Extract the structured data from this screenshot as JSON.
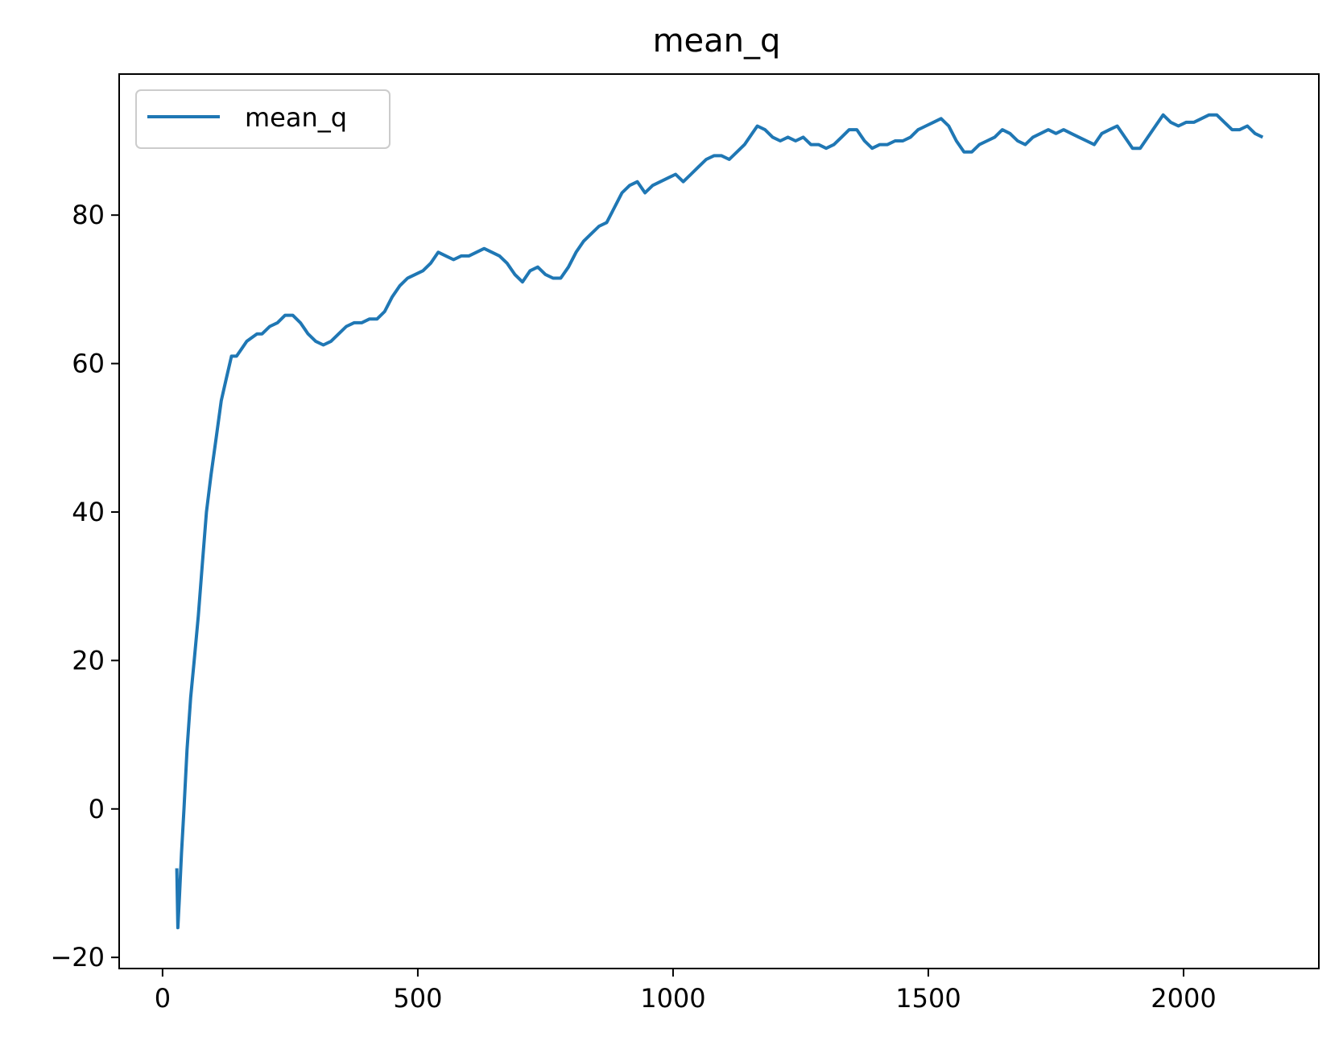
{
  "chart_data": {
    "type": "line",
    "title": "mean_q",
    "xlabel": "",
    "ylabel": "",
    "xlim": [
      -85,
      2265
    ],
    "ylim": [
      -21.5,
      99
    ],
    "xticks": [
      0,
      500,
      1000,
      1500,
      2000
    ],
    "yticks": [
      -20,
      0,
      20,
      40,
      60,
      80
    ],
    "xtick_labels": [
      "0",
      "500",
      "1000",
      "1500",
      "2000"
    ],
    "ytick_labels": [
      "−20",
      "0",
      "20",
      "40",
      "60",
      "80"
    ],
    "grid": false,
    "legend": {
      "position": "top-left",
      "entries": [
        "mean_q"
      ]
    },
    "series": [
      {
        "name": "mean_q",
        "color": "#1f77b4",
        "x": [
          28,
          30,
          33,
          37,
          42,
          48,
          55,
          62,
          70,
          78,
          86,
          95,
          105,
          115,
          125,
          135,
          145,
          155,
          165,
          175,
          185,
          195,
          210,
          225,
          240,
          255,
          270,
          285,
          300,
          315,
          330,
          345,
          360,
          375,
          390,
          405,
          420,
          435,
          450,
          465,
          480,
          495,
          510,
          525,
          540,
          555,
          570,
          585,
          600,
          615,
          630,
          645,
          660,
          675,
          690,
          705,
          720,
          735,
          750,
          765,
          780,
          795,
          810,
          825,
          840,
          855,
          870,
          885,
          900,
          915,
          930,
          945,
          960,
          975,
          990,
          1005,
          1020,
          1035,
          1050,
          1065,
          1080,
          1095,
          1110,
          1125,
          1140,
          1155,
          1165,
          1180,
          1195,
          1210,
          1225,
          1240,
          1255,
          1270,
          1285,
          1300,
          1315,
          1330,
          1345,
          1360,
          1375,
          1390,
          1405,
          1420,
          1435,
          1450,
          1465,
          1480,
          1495,
          1510,
          1525,
          1540,
          1555,
          1570,
          1585,
          1600,
          1615,
          1630,
          1645,
          1660,
          1675,
          1690,
          1705,
          1720,
          1735,
          1750,
          1765,
          1780,
          1795,
          1810,
          1825,
          1840,
          1855,
          1870,
          1885,
          1900,
          1915,
          1930,
          1945,
          1960,
          1975,
          1990,
          2005,
          2020,
          2035,
          2050,
          2065,
          2080,
          2095,
          2110,
          2125,
          2140,
          2155
        ],
        "y": [
          -8,
          -16,
          -12,
          -6,
          0,
          8,
          15,
          20,
          26,
          33,
          40,
          45,
          50,
          55,
          58,
          61,
          61,
          62,
          63,
          63.5,
          64,
          64,
          65,
          65.5,
          66.5,
          66.5,
          65.5,
          64,
          63,
          62.5,
          63,
          64,
          65,
          65.5,
          65.5,
          66,
          66,
          67,
          69,
          70.5,
          71.5,
          72,
          72.5,
          73.5,
          75,
          74.5,
          74,
          74.5,
          74.5,
          75,
          75.5,
          75,
          74.5,
          73.5,
          72,
          71,
          72.5,
          73,
          72,
          71.5,
          71.5,
          73,
          75,
          76.5,
          77.5,
          78.5,
          79,
          81,
          83,
          84,
          84.5,
          83,
          84,
          84.5,
          85,
          85.5,
          84.5,
          85.5,
          86.5,
          87.5,
          88,
          88,
          87.5,
          88.5,
          89.5,
          91,
          92,
          91.5,
          90.5,
          90,
          90.5,
          90,
          90.5,
          89.5,
          89.5,
          89,
          89.5,
          90.5,
          91.5,
          91.5,
          90,
          89,
          89.5,
          89.5,
          90,
          90,
          90.5,
          91.5,
          92,
          92.5,
          93,
          92,
          90,
          88.5,
          88.5,
          89.5,
          90,
          90.5,
          91.5,
          91,
          90,
          89.5,
          90.5,
          91,
          91.5,
          91,
          91.5,
          91,
          90.5,
          90,
          89.5,
          91,
          91.5,
          92,
          90.5,
          89,
          89,
          90.5,
          92,
          93.5,
          92.5,
          92,
          92.5,
          92.5,
          93,
          93.5,
          93.5,
          92.5,
          91.5,
          91.5,
          92,
          91,
          90.5
        ]
      }
    ]
  }
}
